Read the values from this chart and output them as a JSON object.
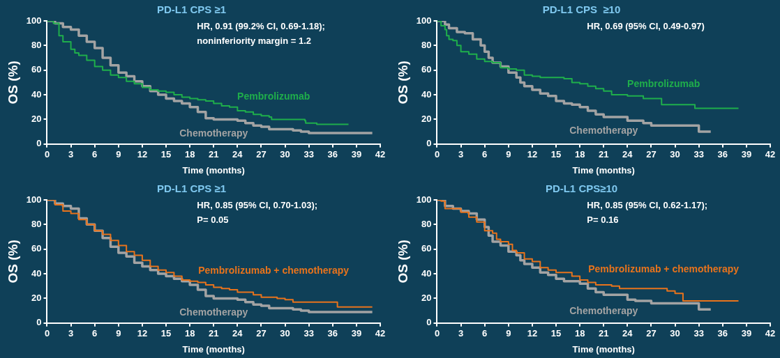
{
  "chart_data": [
    {
      "type": "step",
      "title": "PD-L1 CPS ≥1",
      "xlabel": "Time (months)",
      "ylabel": "OS (%)",
      "xlim": [
        0,
        42
      ],
      "xticks": [
        0,
        3,
        6,
        9,
        12,
        15,
        18,
        21,
        24,
        27,
        30,
        33,
        36,
        39,
        42
      ],
      "ylim": [
        0,
        100
      ],
      "yticks": [
        0,
        20,
        40,
        60,
        80,
        100
      ],
      "grid": false,
      "legend": false,
      "marker": "none",
      "line_style": "solid",
      "annotations": [
        "HR, 0.91 (99.2% CI, 0.69-1.18);",
        "noninferiority margin = 1.2"
      ],
      "series": [
        {
          "name": "Pembrolizumab",
          "color": "#1fae4b",
          "x": [
            0,
            0.8,
            1.5,
            2,
            3,
            3.5,
            4,
            5,
            6,
            7,
            8,
            9,
            10,
            11,
            12,
            13,
            14,
            15,
            16,
            17,
            18,
            19,
            20,
            21,
            22,
            23,
            24,
            25,
            26,
            27,
            28,
            28.3,
            30,
            32.5,
            32.6,
            34,
            38
          ],
          "values": [
            100,
            98,
            88,
            83,
            77,
            74,
            72,
            68,
            63,
            60,
            56,
            54,
            51,
            49,
            46,
            44,
            43,
            42,
            40,
            38,
            37,
            36,
            35,
            33,
            31,
            30,
            27,
            26,
            24,
            23,
            22,
            20,
            20,
            19,
            17,
            16,
            16
          ]
        },
        {
          "name": "Chemotherapy",
          "color": "#a3a3a3",
          "x": [
            0,
            1,
            2,
            3,
            4,
            5,
            6,
            7,
            8,
            9,
            10,
            11,
            12,
            13,
            14,
            15,
            16,
            17,
            18,
            19,
            20,
            21,
            24,
            25,
            26,
            27,
            28,
            31,
            32,
            33,
            41
          ],
          "values": [
            100,
            98,
            95,
            93,
            88,
            83,
            78,
            70,
            64,
            58,
            55,
            51,
            47,
            43,
            40,
            37,
            35,
            33,
            30,
            26,
            21,
            20,
            19,
            17,
            15,
            14,
            12,
            11,
            10,
            9,
            9
          ]
        }
      ]
    },
    {
      "type": "step",
      "title": "PD-L1 CPS  ≥10",
      "xlabel": "Time (months)",
      "ylabel": "OS (%)",
      "xlim": [
        0,
        42
      ],
      "xticks": [
        0,
        3,
        6,
        9,
        12,
        15,
        18,
        21,
        24,
        27,
        30,
        33,
        36,
        39,
        42
      ],
      "ylim": [
        0,
        100
      ],
      "yticks": [
        0,
        20,
        40,
        60,
        80,
        100
      ],
      "grid": false,
      "legend": false,
      "marker": "none",
      "line_style": "solid",
      "annotations": [
        "HR, 0.69 (95% CI, 0.49-0.97)"
      ],
      "series": [
        {
          "name": "Pembrolizumab",
          "color": "#1fae4b",
          "x": [
            0,
            0.5,
            1,
            1.2,
            1.5,
            2,
            2.5,
            3,
            4,
            5,
            6,
            7,
            8,
            9,
            10,
            11,
            12,
            13,
            16,
            17,
            18,
            19,
            20,
            21,
            22,
            24,
            26,
            28.3,
            30,
            32.5,
            38
          ],
          "values": [
            100,
            96,
            93,
            88,
            85,
            84,
            80,
            75,
            73,
            69,
            67,
            66,
            62,
            61,
            60,
            56,
            55,
            54,
            53,
            50,
            49,
            47,
            45,
            43,
            40,
            39,
            37,
            32,
            32,
            29,
            29
          ]
        },
        {
          "name": "Chemotherapy",
          "color": "#a3a3a3",
          "x": [
            0,
            1,
            1.5,
            2.5,
            3.5,
            4.5,
            5.5,
            6,
            6.5,
            7,
            8,
            9,
            10,
            10.5,
            11,
            12,
            13,
            14,
            15,
            16,
            17,
            18,
            19,
            20,
            21,
            24,
            26,
            27,
            33,
            34.5
          ],
          "values": [
            100,
            97,
            94,
            91,
            90,
            85,
            80,
            75,
            70,
            66,
            63,
            58,
            54,
            50,
            47,
            44,
            41,
            39,
            35,
            33,
            32,
            30,
            27,
            24,
            22,
            19,
            17,
            15,
            10,
            10
          ]
        }
      ]
    },
    {
      "type": "step",
      "title": "PD-L1 CPS ≥1",
      "xlabel": "Time (months)",
      "ylabel": "OS (%)",
      "xlim": [
        0,
        42
      ],
      "xticks": [
        0,
        3,
        6,
        9,
        12,
        15,
        18,
        21,
        24,
        27,
        30,
        33,
        36,
        39,
        42
      ],
      "ylim": [
        0,
        100
      ],
      "yticks": [
        0,
        20,
        40,
        60,
        80,
        100
      ],
      "grid": false,
      "legend": false,
      "marker": "none",
      "line_style": "solid",
      "annotations": [
        "HR, 0.85 (95% CI, 0.70-1.03);",
        "P= 0.05"
      ],
      "series": [
        {
          "name": "Pembrolizumab + chemotherapy",
          "color": "#e8731c",
          "x": [
            0,
            1,
            2,
            3,
            4,
            5,
            6,
            7,
            8,
            9,
            10,
            11,
            12,
            13,
            14,
            15,
            16,
            17,
            18,
            19,
            20,
            21,
            22,
            23,
            24,
            26,
            27,
            29,
            30,
            31,
            36.5,
            36.6,
            41
          ],
          "values": [
            100,
            96,
            91,
            89,
            84,
            80,
            75,
            72,
            67,
            63,
            58,
            55,
            51,
            46,
            43,
            41,
            38,
            35,
            34,
            33,
            31,
            29,
            28,
            27,
            25,
            23,
            21,
            20,
            19,
            17,
            17,
            13,
            13
          ]
        },
        {
          "name": "Chemotherapy",
          "color": "#a3a3a3",
          "x": [
            0,
            1,
            2,
            3,
            4,
            5,
            6,
            7,
            8,
            9,
            10,
            11,
            12,
            13,
            14,
            15,
            16,
            17,
            18,
            19,
            20,
            21,
            24,
            25,
            26,
            27,
            28,
            31,
            32,
            33,
            41
          ],
          "values": [
            100,
            97,
            95,
            93,
            85,
            80,
            75,
            69,
            62,
            57,
            54,
            49,
            46,
            43,
            40,
            38,
            36,
            34,
            31,
            27,
            22,
            20,
            19,
            17,
            15,
            14,
            12,
            11,
            10,
            9,
            9
          ]
        }
      ]
    },
    {
      "type": "step",
      "title": "PD-L1 CPS≥10",
      "xlabel": "Time (months)",
      "ylabel": "OS (%)",
      "xlim": [
        0,
        42
      ],
      "xticks": [
        0,
        3,
        6,
        9,
        12,
        15,
        18,
        21,
        24,
        27,
        30,
        33,
        36,
        39,
        42
      ],
      "ylim": [
        0,
        100
      ],
      "yticks": [
        0,
        20,
        40,
        60,
        80,
        100
      ],
      "grid": false,
      "legend": false,
      "marker": "none",
      "line_style": "solid",
      "annotations": [
        "HR, 0.85 (95% CI, 0.62-1.17);",
        "P= 0.16"
      ],
      "series": [
        {
          "name": "Pembrolizumab + chemotherapy",
          "color": "#e8731c",
          "x": [
            0,
            0.5,
            1,
            2,
            3,
            4,
            5,
            6,
            7,
            7.5,
            8,
            9,
            9.5,
            10,
            11,
            12,
            13,
            14,
            15,
            17,
            18,
            19,
            20,
            22,
            23,
            29,
            30,
            31,
            38
          ],
          "values": [
            100,
            99,
            93,
            93,
            90,
            86,
            82,
            75,
            73,
            68,
            66,
            64,
            59,
            57,
            52,
            50,
            45,
            43,
            41,
            38,
            35,
            33,
            31,
            30,
            28,
            26,
            24,
            18,
            18
          ]
        },
        {
          "name": "Chemotherapy",
          "color": "#a3a3a3",
          "x": [
            0,
            1,
            2,
            3,
            4,
            5,
            6,
            6.5,
            7,
            8,
            9,
            10,
            10.5,
            11,
            12,
            13,
            14,
            15,
            16,
            18,
            19,
            20,
            21,
            24,
            25,
            27,
            33,
            34.5
          ],
          "values": [
            100,
            95,
            93,
            91,
            89,
            84,
            78,
            71,
            66,
            63,
            58,
            55,
            51,
            48,
            45,
            41,
            39,
            36,
            34,
            32,
            28,
            25,
            23,
            19,
            18,
            16,
            11,
            11
          ]
        }
      ]
    }
  ]
}
